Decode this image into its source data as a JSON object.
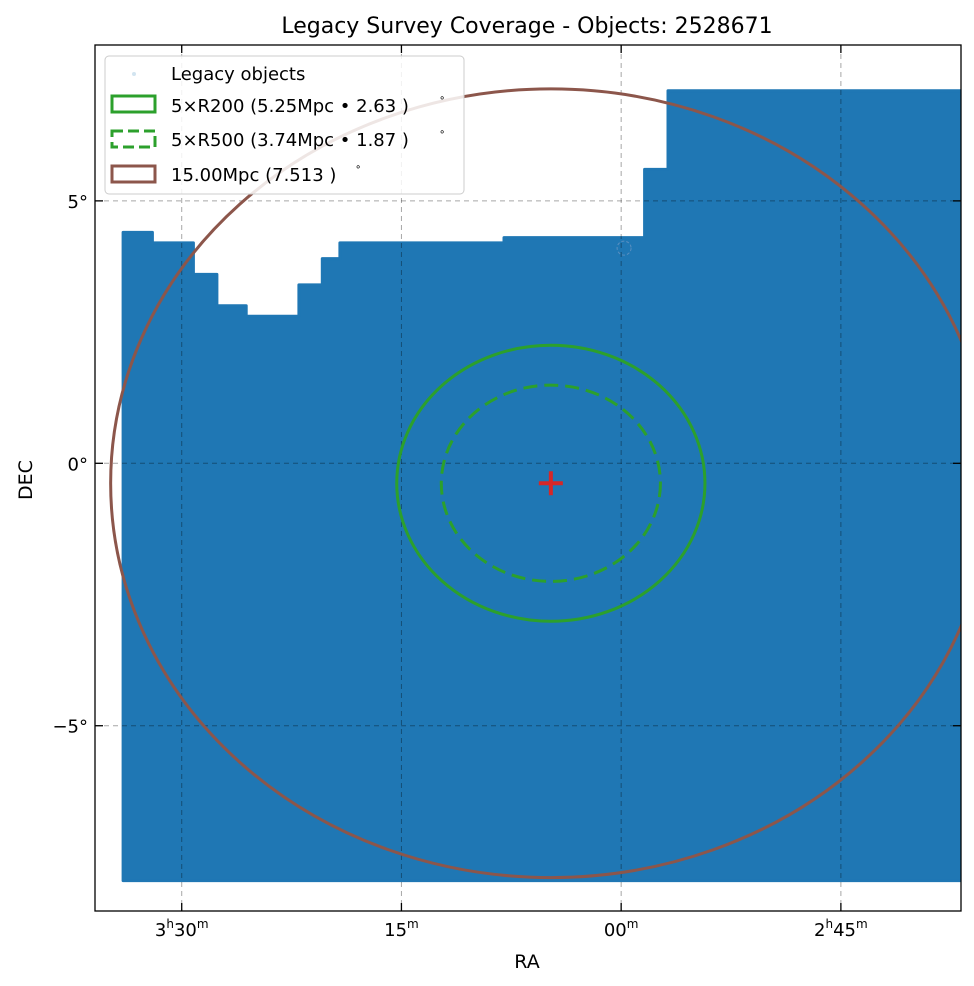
{
  "chart_data": {
    "type": "scatter",
    "title": "Legacy Survey Coverage - Objects: 2528671",
    "xlabel": "RA",
    "ylabel": "DEC",
    "x_axis_inverted": true,
    "xlim_deg": [
      53.98,
      39.2
    ],
    "ylim_deg": [
      -8.53,
      7.97
    ],
    "grid": true,
    "legend_position": "upper left",
    "x_ticks": [
      {
        "value_deg": 52.5,
        "hours": "3",
        "minutes": "30"
      },
      {
        "value_deg": 48.75,
        "hours": "",
        "minutes": "15"
      },
      {
        "value_deg": 45.0,
        "hours": "",
        "minutes": "00"
      },
      {
        "value_deg": 41.25,
        "hours": "2",
        "minutes": "45"
      }
    ],
    "y_ticks": [
      {
        "value_deg": 5,
        "label": "5°"
      },
      {
        "value_deg": 0,
        "label": "0°"
      },
      {
        "value_deg": -5,
        "label": "−5°"
      }
    ],
    "center": {
      "ra": 46.2,
      "dec": -0.38,
      "marker": "plus",
      "color": "#d62728"
    },
    "coverage": {
      "name": "Legacy objects",
      "color": "#1f77b4",
      "object_count": 2528671,
      "outline": [
        [
          53.5,
          -7.95
        ],
        [
          38.9,
          -7.95
        ],
        [
          38.9,
          7.1
        ],
        [
          44.2,
          7.1
        ],
        [
          44.2,
          5.6
        ],
        [
          44.6,
          5.6
        ],
        [
          44.6,
          4.3
        ],
        [
          47.0,
          4.3
        ],
        [
          47.0,
          4.2
        ],
        [
          49.8,
          4.2
        ],
        [
          49.8,
          3.9
        ],
        [
          50.1,
          3.9
        ],
        [
          50.1,
          3.4
        ],
        [
          50.5,
          3.4
        ],
        [
          50.5,
          2.8
        ],
        [
          51.4,
          2.8
        ],
        [
          51.4,
          3.0
        ],
        [
          51.9,
          3.0
        ],
        [
          51.9,
          3.6
        ],
        [
          52.3,
          3.6
        ],
        [
          52.3,
          4.2
        ],
        [
          53.0,
          4.2
        ],
        [
          53.0,
          4.4
        ],
        [
          53.5,
          4.4
        ]
      ]
    },
    "series": [
      {
        "name": "5×R200 (5.25Mpc • 2.63$^\\circ$)",
        "label_display": "5×R200 (5.25Mpc • 2.63 )",
        "sup": "∘",
        "type": "circle",
        "radius_deg": 2.63,
        "color": "#2ca02c",
        "linestyle": "solid"
      },
      {
        "name": "5×R500 (3.74Mpc • 1.87$^\\circ$)",
        "label_display": "5×R500 (3.74Mpc • 1.87 )",
        "sup": "∘",
        "type": "circle",
        "radius_deg": 1.87,
        "color": "#2ca02c",
        "linestyle": "dashed"
      },
      {
        "name": "15.00Mpc (7.513$^\\circ$)",
        "label_display": "15.00Mpc (7.513 )",
        "sup": "∘",
        "type": "circle",
        "radius_deg": 7.513,
        "color": "#8c564b",
        "linestyle": "solid"
      }
    ]
  }
}
